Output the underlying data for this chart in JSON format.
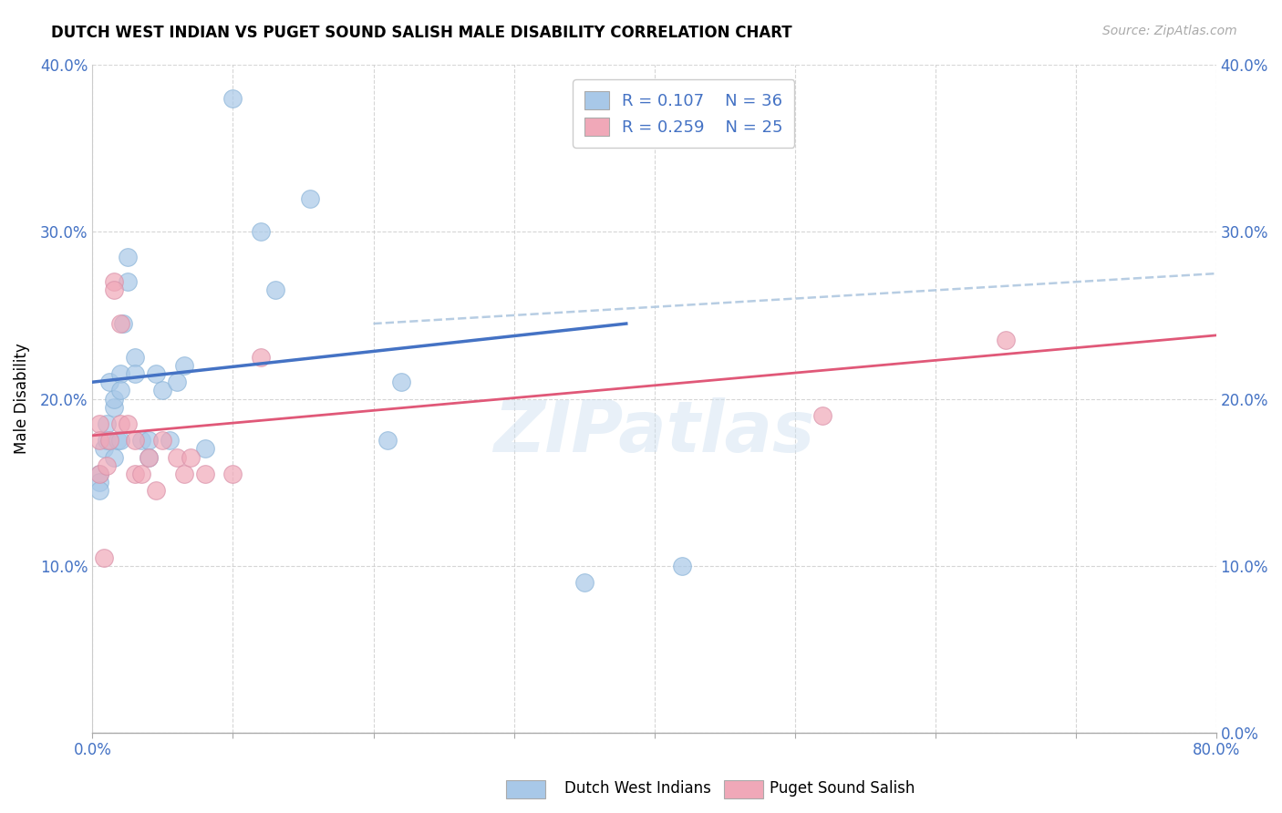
{
  "title": "DUTCH WEST INDIAN VS PUGET SOUND SALISH MALE DISABILITY CORRELATION CHART",
  "source": "Source: ZipAtlas.com",
  "ylabel_label": "Male Disability",
  "xlim": [
    0.0,
    0.8
  ],
  "ylim": [
    0.0,
    0.4
  ],
  "legend_R1": "R = 0.107",
  "legend_N1": "N = 36",
  "legend_R2": "R = 0.259",
  "legend_N2": "N = 25",
  "color_blue": "#a8c8e8",
  "color_pink": "#f0a8b8",
  "color_blue_line": "#4472c4",
  "color_pink_line": "#e05878",
  "color_blue_dashed": "#b0c8e0",
  "watermark": "ZIPatlas",
  "dutch_x": [
    0.005,
    0.005,
    0.005,
    0.008,
    0.01,
    0.01,
    0.012,
    0.015,
    0.015,
    0.015,
    0.018,
    0.02,
    0.02,
    0.02,
    0.022,
    0.025,
    0.025,
    0.03,
    0.03,
    0.035,
    0.04,
    0.04,
    0.045,
    0.05,
    0.055,
    0.06,
    0.065,
    0.08,
    0.1,
    0.12,
    0.13,
    0.155,
    0.21,
    0.22,
    0.35,
    0.42
  ],
  "dutch_y": [
    0.155,
    0.15,
    0.145,
    0.17,
    0.175,
    0.185,
    0.21,
    0.195,
    0.2,
    0.165,
    0.175,
    0.215,
    0.205,
    0.175,
    0.245,
    0.27,
    0.285,
    0.225,
    0.215,
    0.175,
    0.175,
    0.165,
    0.215,
    0.205,
    0.175,
    0.21,
    0.22,
    0.17,
    0.38,
    0.3,
    0.265,
    0.32,
    0.175,
    0.21,
    0.09,
    0.1
  ],
  "salish_x": [
    0.005,
    0.005,
    0.005,
    0.008,
    0.01,
    0.012,
    0.015,
    0.015,
    0.02,
    0.02,
    0.025,
    0.03,
    0.03,
    0.035,
    0.04,
    0.045,
    0.05,
    0.06,
    0.065,
    0.07,
    0.08,
    0.1,
    0.12,
    0.52,
    0.65
  ],
  "salish_y": [
    0.185,
    0.175,
    0.155,
    0.105,
    0.16,
    0.175,
    0.27,
    0.265,
    0.245,
    0.185,
    0.185,
    0.175,
    0.155,
    0.155,
    0.165,
    0.145,
    0.175,
    0.165,
    0.155,
    0.165,
    0.155,
    0.155,
    0.225,
    0.19,
    0.235
  ],
  "blue_line_x0": 0.0,
  "blue_line_y0": 0.21,
  "blue_line_x1": 0.38,
  "blue_line_y1": 0.245,
  "pink_line_x0": 0.0,
  "pink_line_y0": 0.178,
  "pink_line_x1": 0.8,
  "pink_line_y1": 0.238,
  "dash_line_x0": 0.2,
  "dash_line_y0": 0.245,
  "dash_line_x1": 0.8,
  "dash_line_y1": 0.275
}
